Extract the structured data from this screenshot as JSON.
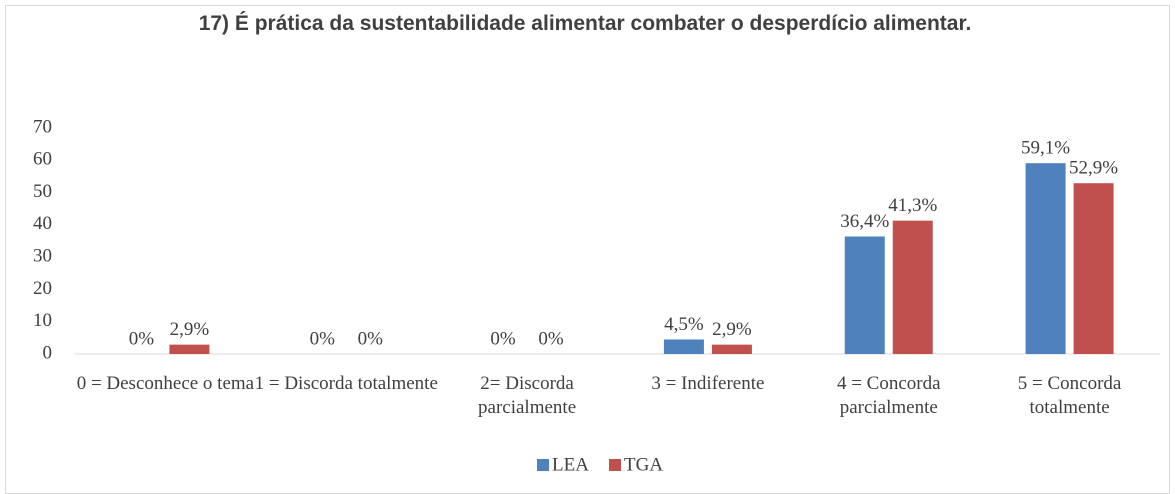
{
  "chart_data": {
    "type": "bar",
    "title": "17)  É prática da sustentabilidade alimentar combater o desperdício alimentar.",
    "categories": [
      "0 = Desconhece o tema",
      "1 = Discorda totalmente",
      "2= Discorda parcialmente",
      "3 = Indiferente",
      "4 = Concorda parcialmente",
      "5 = Concorda totalmente"
    ],
    "series": [
      {
        "name": "LEA",
        "color": "#4f81bd",
        "values": [
          0,
          0,
          0,
          4.5,
          36.4,
          59.1
        ],
        "value_labels": [
          "0%",
          "0%",
          "0%",
          "4,5%",
          "36,4%",
          "59,1%"
        ]
      },
      {
        "name": "TGA",
        "color": "#c0504d",
        "values": [
          2.9,
          0,
          0,
          2.9,
          41.3,
          52.9
        ],
        "value_labels": [
          "2,9%",
          "0%",
          "0%",
          "2,9%",
          "41,3%",
          "52,9%"
        ]
      }
    ],
    "ylim": [
      0,
      70
    ],
    "yticks": [
      0,
      10,
      20,
      30,
      40,
      50,
      60,
      70
    ],
    "grid": false,
    "legend": "bottom"
  }
}
